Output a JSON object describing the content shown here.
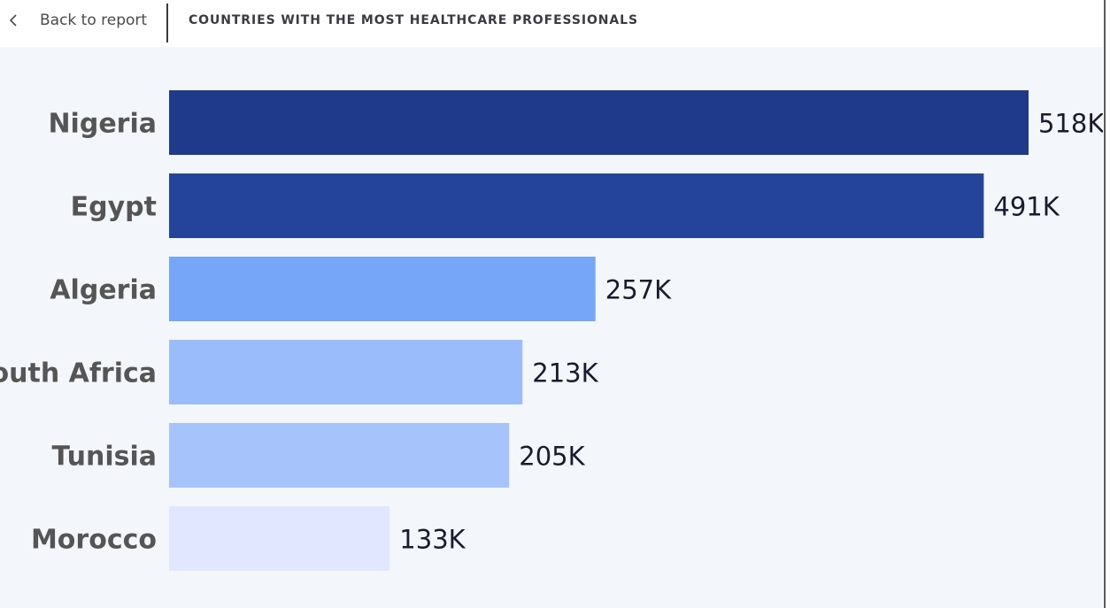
{
  "header": {
    "back_label": "Back to report",
    "back_icon": "chevron-left-icon",
    "title": "COUNTRIES WITH THE MOST HEALTHCARE PROFESSIONALS"
  },
  "chart_data": {
    "type": "bar",
    "orientation": "horizontal",
    "title": "COUNTRIES WITH THE MOST HEALTHCARE PROFESSIONALS",
    "xlabel": "",
    "ylabel": "",
    "grid": false,
    "legend": "none",
    "categories": [
      "Nigeria",
      "Egypt",
      "Algeria",
      "South Africa",
      "Tunisia",
      "Morocco"
    ],
    "values": [
      518000,
      491000,
      257000,
      213000,
      205000,
      133000
    ],
    "value_labels": [
      "518K",
      "491K",
      "257K",
      "213K",
      "205K",
      "133K"
    ],
    "colors": [
      "#1f3a8a",
      "#23449a",
      "#76a6f8",
      "#9bbcfb",
      "#a6c3fb",
      "#e1e7fe"
    ]
  }
}
